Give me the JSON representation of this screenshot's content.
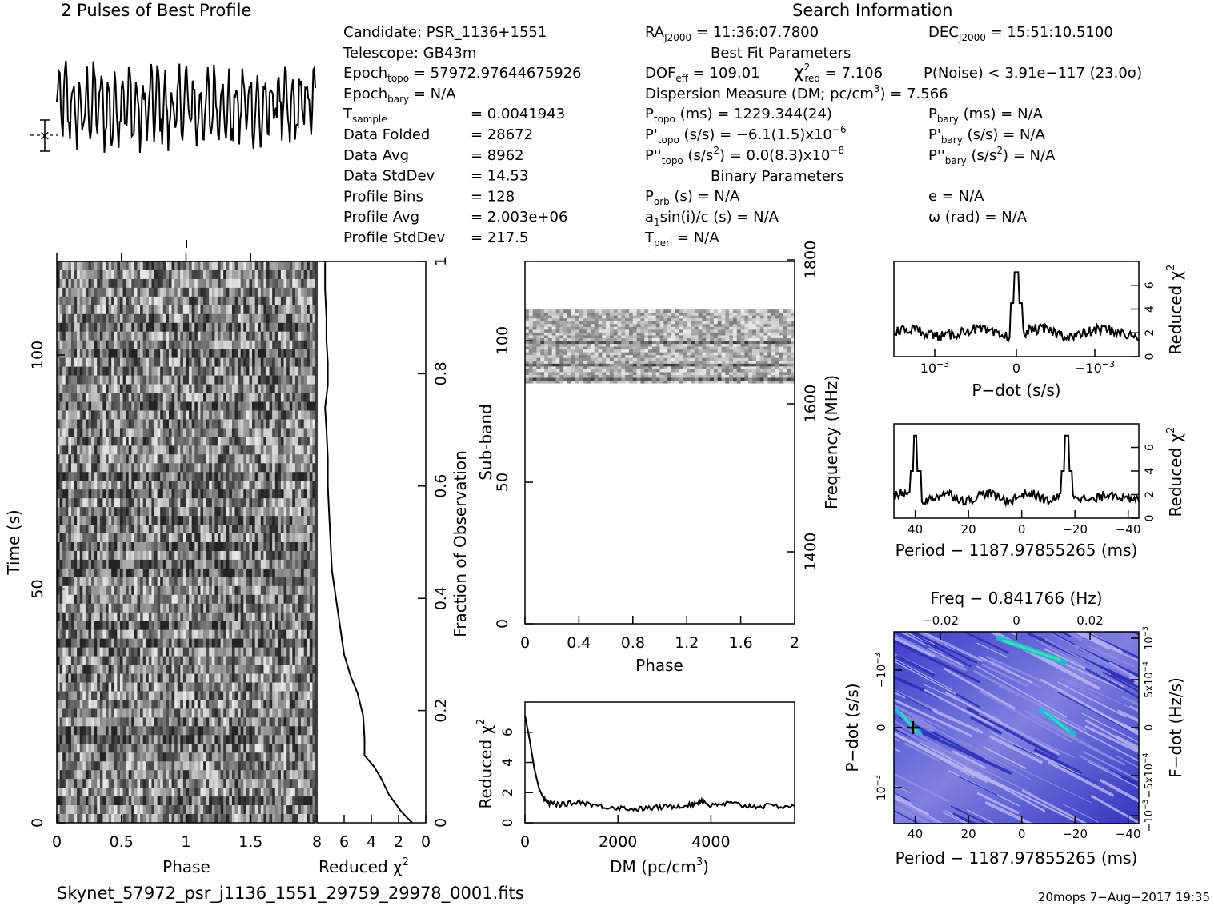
{
  "colors": {
    "ink": "#000000",
    "ppdot_low": "#2a2ab8",
    "ppdot_mid": "#9d9dea",
    "ppdot_high": "#22b8d8"
  },
  "header": {
    "profile_title": "2 Pulses of Best Profile",
    "search_title": "Search Information",
    "best_fit_title": "Best Fit Parameters",
    "binary_title": "Binary Parameters"
  },
  "candidate": {
    "candidate": "Candidate:  PSR_1136+1551",
    "telescope": "Telescope:  GB43m",
    "epoch_topo_label": "Epoch",
    "epoch_topo_sub": "topo",
    "epoch_topo_val": " = 57972.97644675926",
    "epoch_bary_label": "Epoch",
    "epoch_bary_sub": "bary",
    "epoch_bary_val": " = N/A",
    "tsample_label": "T",
    "tsample_sub": "sample",
    "tsample_val": "=   0.0041943",
    "rows": [
      {
        "label": "Data Folded",
        "value": "=   28672"
      },
      {
        "label": "Data Avg",
        "value": "=   8962"
      },
      {
        "label": "Data StdDev",
        "value": "=   14.53"
      },
      {
        "label": "Profile Bins",
        "value": "=   128"
      },
      {
        "label": "Profile Avg",
        "value": "=   2.003e+06"
      },
      {
        "label": "Profile StdDev",
        "value": "=   217.5"
      }
    ]
  },
  "search": {
    "ra_label": "RA",
    "ra_sub": "J2000",
    "ra_val": " = 11:36:07.7800",
    "dec_label": "DEC",
    "dec_sub": "J2000",
    "dec_val": " = 15:51:10.5100",
    "dof_label": "DOF",
    "dof_sub": "eff",
    "dof_val": " = 109.01",
    "chi_label": "χ",
    "chi_sup": "2",
    "chi_sub": "red",
    "chi_val": " = 7.106",
    "pnoise": "P(Noise) < 3.91e−117   (23.0σ)",
    "dm_line_a": "Dispersion Measure (DM; pc/cm",
    "dm_line_sup": "3",
    "dm_line_b": ") = 7.566",
    "ptopo_label": "P",
    "ptopo_sub": "topo",
    "ptopo_val": " (ms) =  1229.344(24)",
    "pdtopo_label": "P'",
    "pdtopo_sub": "topo",
    "pdtopo_val": " (s/s) = −6.1(1.5)x10",
    "pdtopo_exp": "−6",
    "pddtopo_label": "P''",
    "pddtopo_sub": "topo",
    "pddtopo_val_a": " (s/s",
    "pddtopo_val_sup": "2",
    "pddtopo_val_b": ") = 0.0(8.3)x10",
    "pddtopo_exp": "−8",
    "pbary_label": "P",
    "pbary_sub": "bary",
    "pbary_val": " (ms) = N/A",
    "pdbary_label": "P'",
    "pdbary_sub": "bary",
    "pdbary_val": " (s/s) = N/A",
    "pddbary_label": "P''",
    "pddbary_sub": "bary",
    "pddbary_val_a": " (s/s",
    "pddbary_val_sup": "2",
    "pddbary_val_b": ") = N/A",
    "porb_label": "P",
    "porb_sub": "orb",
    "porb_val": " (s) = N/A",
    "a1_label": "a",
    "a1_sub": "1",
    "a1_val": "sin(i)/c (s) = N/A",
    "tperi_label": "T",
    "tperi_sub": "peri",
    "tperi_val": " = N/A",
    "e_line": "e = N/A",
    "omega_line": "ω (rad) = N/A"
  },
  "chart_data": [
    {
      "type": "line",
      "id": "best-profile",
      "title": "2 Pulses of Best Profile",
      "xlabel": "",
      "ylabel": "",
      "phase_range": [
        0,
        2
      ],
      "pattern_period_bins": 7,
      "n_points": 256
    },
    {
      "type": "heatmap",
      "id": "time-phase",
      "xlabel": "Phase",
      "ylabel": "Time (s)",
      "xlim": [
        0,
        2
      ],
      "ylim": [
        0,
        120
      ],
      "x_ticks": [
        "0",
        "0.5",
        "1",
        "1.5"
      ],
      "y_ticks": [
        "0",
        "50",
        "100"
      ],
      "rows": 64
    },
    {
      "type": "line",
      "id": "time-chi2",
      "xlabel": "Reduced χ",
      "xlabel_sup": "2",
      "ylabel": "Fraction of Observation",
      "xlim": [
        8,
        0
      ],
      "ylim": [
        0,
        1
      ],
      "x_ticks": [
        "8",
        "6",
        "4",
        "2",
        "0"
      ],
      "y_ticks": [
        "0.2",
        "0.4",
        "0.6",
        "0.8",
        "1"
      ],
      "fraction": [
        0,
        0.02,
        0.05,
        0.08,
        0.1,
        0.12,
        0.15,
        0.19,
        0.23,
        0.26,
        0.3,
        0.35,
        0.4,
        0.45,
        0.5,
        0.55,
        0.6,
        0.65,
        0.7,
        0.74,
        0.78,
        0.82,
        0.86,
        0.9,
        0.95,
        1.0
      ],
      "chi2": [
        1.0,
        1.8,
        2.7,
        3.3,
        3.8,
        4.5,
        4.5,
        4.6,
        5.0,
        5.5,
        6.0,
        6.3,
        6.6,
        6.9,
        7.0,
        7.1,
        7.2,
        7.2,
        7.3,
        7.4,
        7.2,
        7.2,
        7.3,
        7.3,
        7.4,
        7.4
      ]
    },
    {
      "type": "heatmap",
      "id": "subband-phase",
      "xlabel": "Phase",
      "ylabel": "Sub-band",
      "right_label": "Frequency (MHz)",
      "xlim": [
        0,
        2
      ],
      "ylim": [
        0,
        128
      ],
      "x_ticks": [
        "0",
        "0.4",
        "0.8",
        "1.2",
        "1.6",
        "2"
      ],
      "y_ticks": [
        "0",
        "50",
        "100"
      ],
      "right_ticks": [
        "1400",
        "1600",
        "1800"
      ],
      "active_subbands": [
        85,
        111
      ]
    },
    {
      "type": "line",
      "id": "dm-chi2",
      "xlabel": "DM (pc/cm",
      "xlabel_sup": "3",
      "xlabel_end": ")",
      "ylabel": "Reduced χ",
      "ylabel_sup": "2",
      "xlim": [
        0,
        5800
      ],
      "ylim": [
        0,
        8
      ],
      "x_ticks": [
        "0",
        "2000",
        "4000"
      ],
      "y_ticks": [
        "0",
        "2",
        "4",
        "6"
      ],
      "x": [
        0,
        100,
        200,
        300,
        400,
        500,
        800,
        1200,
        1600,
        2000,
        2400,
        2800,
        3200,
        3600,
        3800,
        4000,
        4400,
        4800,
        5200,
        5800
      ],
      "y": [
        7.1,
        5.5,
        3.6,
        2.3,
        1.6,
        1.3,
        1.2,
        1.4,
        1.1,
        1.0,
        0.9,
        1.0,
        1.1,
        1.2,
        1.5,
        1.1,
        1.3,
        1.1,
        1.1,
        1.1
      ]
    },
    {
      "type": "line",
      "id": "pdot-chi2",
      "xlabel": "P−dot (s/s)",
      "ylabel": "Reduced χ",
      "ylabel_sup": "2",
      "x_ticks": [
        "10",
        "0",
        "−10"
      ],
      "x_ticks_exp": "−3",
      "y_ticks": [
        "0",
        "2",
        "4",
        "6"
      ],
      "ylim": [
        0,
        8
      ],
      "peak_x": 0,
      "peak_y": 7.1,
      "baseline": 2.0
    },
    {
      "type": "line",
      "id": "period-chi2",
      "xlabel": "Period − 1187.97855265 (ms)",
      "ylabel": "Reduced χ",
      "ylabel_sup": "2",
      "xlim": [
        48,
        -44
      ],
      "ylim": [
        0,
        8
      ],
      "x_ticks": [
        "40",
        "20",
        "0",
        "−20",
        "−40"
      ],
      "y_ticks": [
        "0",
        "2",
        "4",
        "6"
      ],
      "peaks": [
        {
          "x": 40,
          "y": 7.0
        },
        {
          "x": -17,
          "y": 7.0
        }
      ],
      "baseline": 1.8
    },
    {
      "type": "heatmap",
      "id": "p-pdot",
      "xlabel": "Period − 1187.97855265 (ms)",
      "ylabel": "P−dot (s/s)",
      "top_label": "Freq − 0.841766 (Hz)",
      "right_label": "F−dot (Hz/s)",
      "x_ticks": [
        "40",
        "20",
        "0",
        "−20",
        "−40"
      ],
      "top_ticks": [
        "−0.02",
        "0",
        "0.02"
      ],
      "left_ticks": [
        "10",
        "0",
        "−10"
      ],
      "left_ticks_exp": "−3",
      "right_ticks": [
        "−10",
        "−5x10",
        "0",
        "5x10",
        "10"
      ],
      "right_ticks_exp": "−3",
      "best_x": 40,
      "best_y": 0
    }
  ],
  "footer": {
    "filename": "Skynet_57972_psr_j1136_1551_29759_29978_0001.fits",
    "stamp": "20mops  7−Aug−2017 19:35"
  }
}
